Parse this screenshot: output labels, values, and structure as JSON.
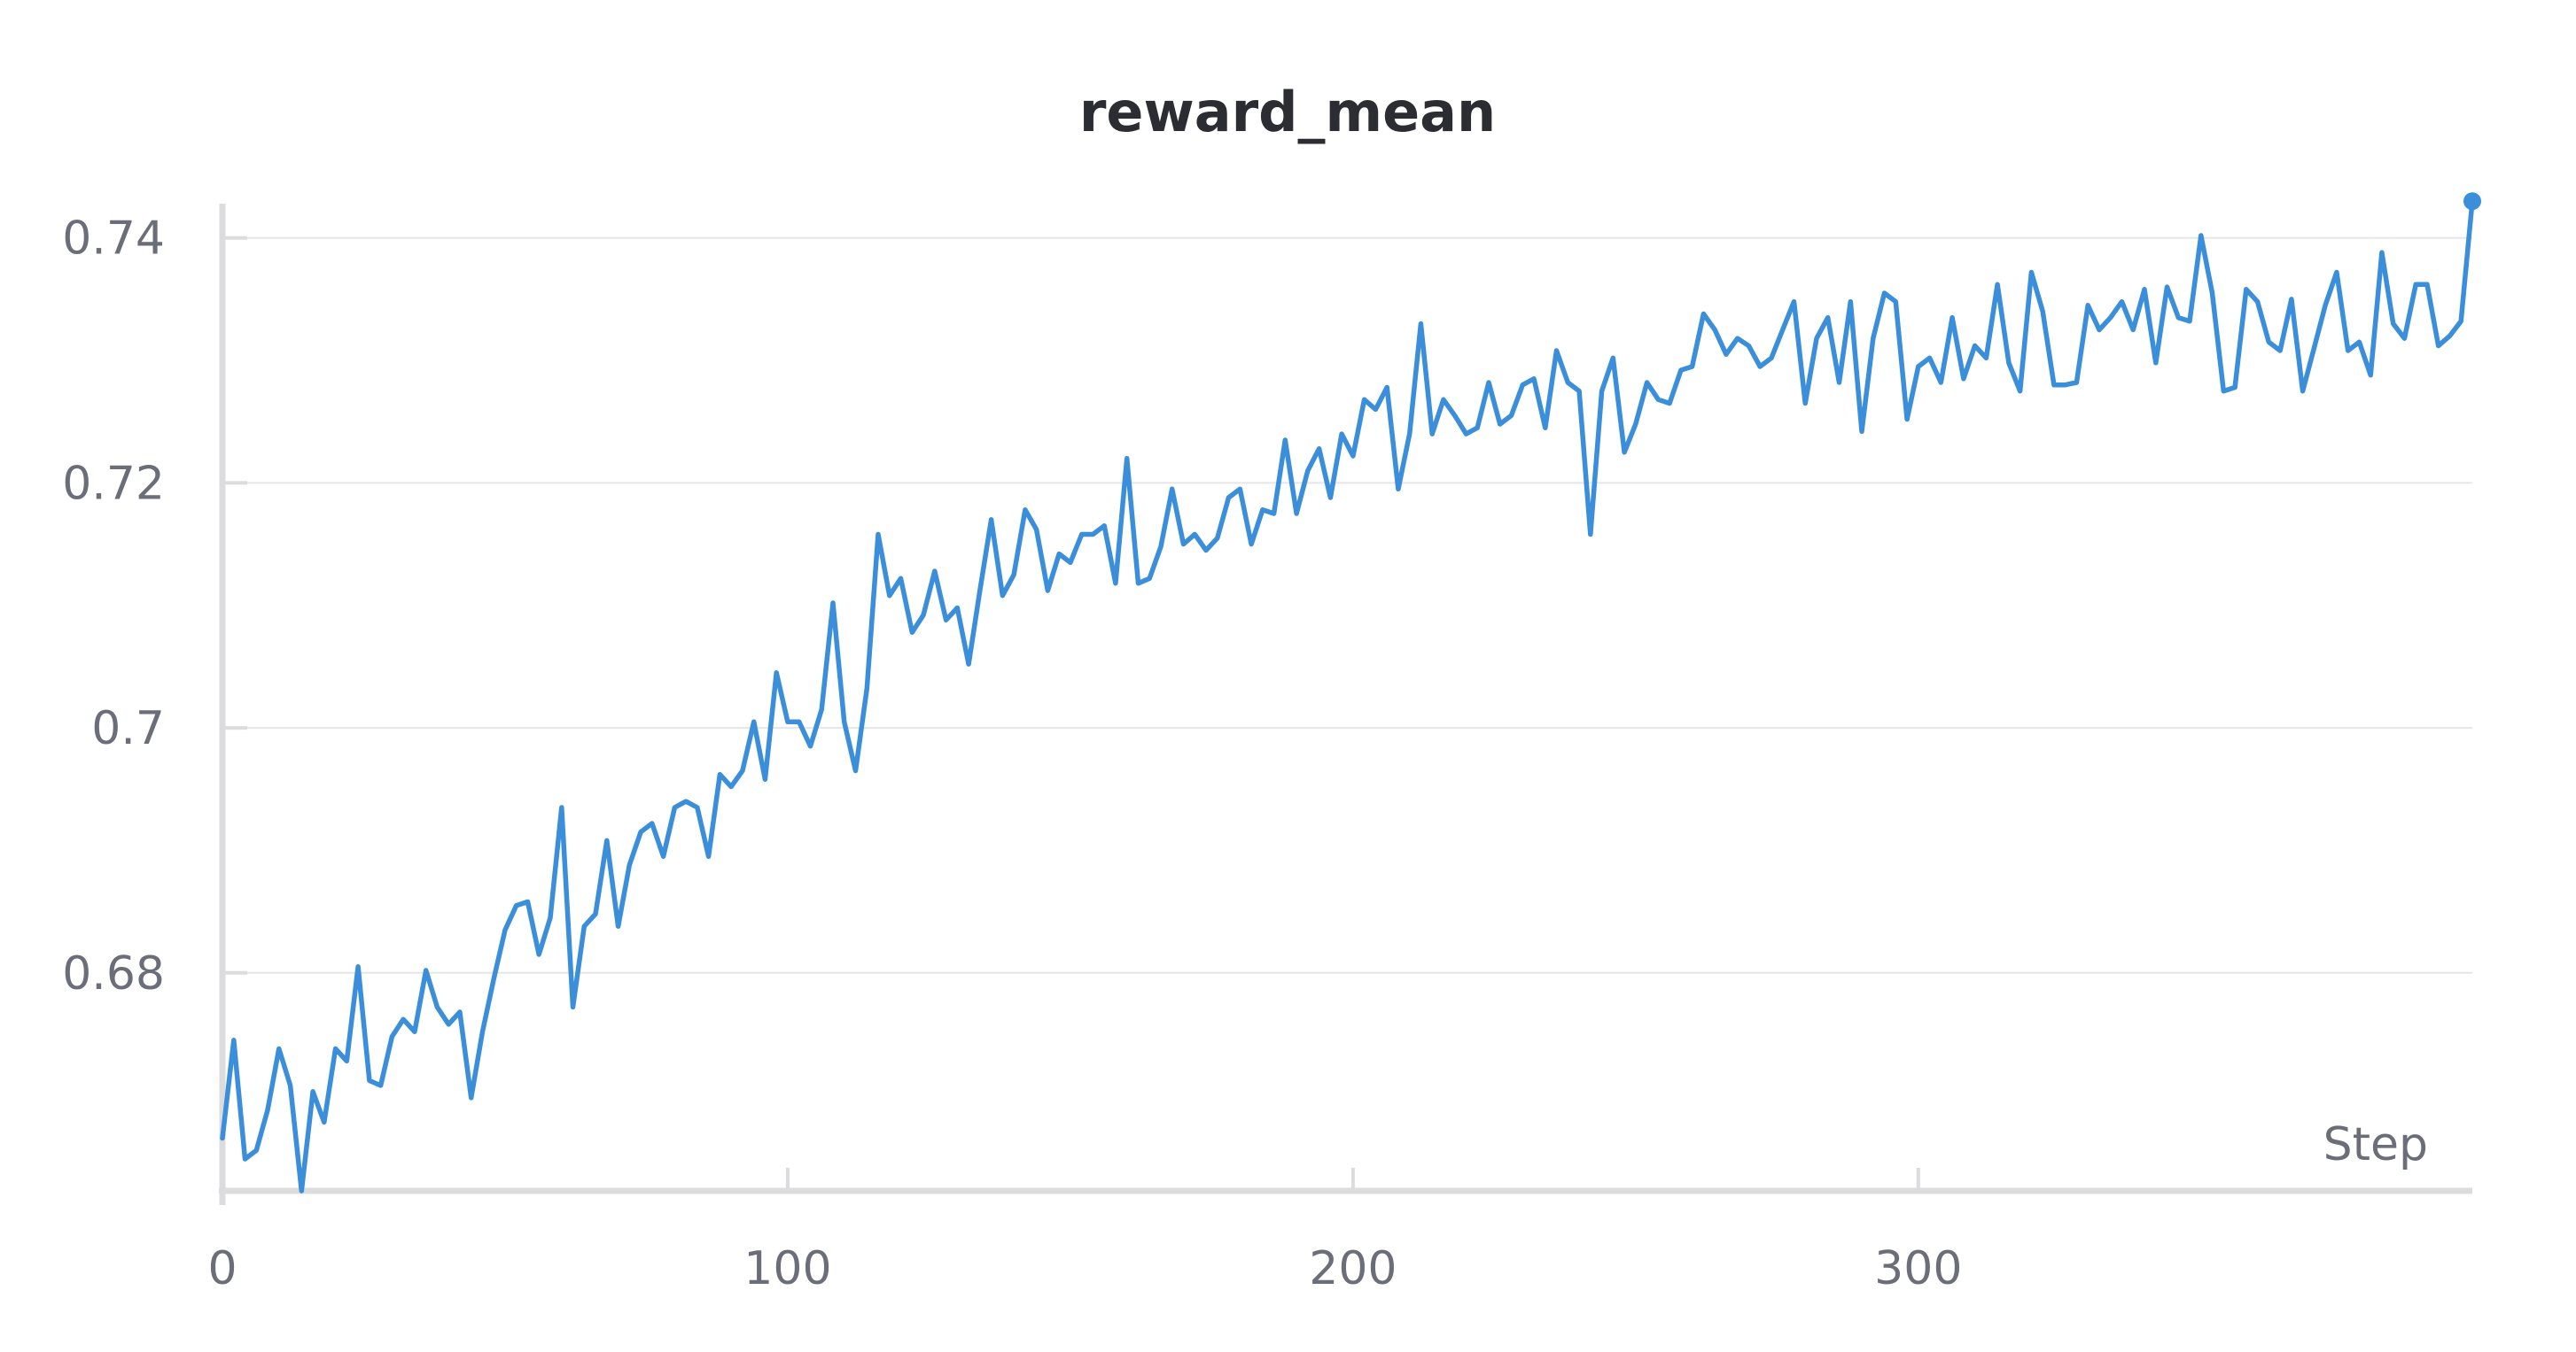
{
  "chart_data": {
    "type": "line",
    "title": "reward_mean",
    "xlabel": "Step",
    "ylabel": "",
    "xlim": [
      0,
      398
    ],
    "ylim": [
      0.6622,
      0.7428
    ],
    "x_ticks": [
      {
        "value": 0,
        "label": "0"
      },
      {
        "value": 100,
        "label": "100"
      },
      {
        "value": 200,
        "label": "200"
      },
      {
        "value": 300,
        "label": "300"
      }
    ],
    "y_ticks": [
      {
        "value": 0.68,
        "label": "0.68"
      },
      {
        "value": 0.7,
        "label": "0.7"
      },
      {
        "value": 0.72,
        "label": "0.72"
      },
      {
        "value": 0.74,
        "label": "0.74"
      }
    ],
    "grid": true,
    "legend": "none",
    "colors": {
      "line": "#3b8ed9",
      "title": "#2b2d33",
      "tick_text": "#6b6e78"
    },
    "series": [
      {
        "x": [
          0,
          2,
          4,
          6,
          8,
          10,
          12,
          14,
          16,
          18,
          20,
          22,
          24,
          26,
          28,
          30,
          32,
          34,
          36,
          38,
          40,
          42,
          44,
          46,
          48,
          50,
          52,
          54,
          56,
          58,
          60,
          62,
          64,
          66,
          68,
          70,
          72,
          74,
          76,
          78,
          80,
          82,
          84,
          86,
          88,
          90,
          92,
          94,
          96,
          98,
          100,
          102,
          104,
          106,
          108,
          110,
          112,
          114,
          116,
          118,
          120,
          122,
          124,
          126,
          128,
          130,
          132,
          134,
          136,
          138,
          140,
          142,
          144,
          146,
          148,
          150,
          152,
          154,
          156,
          158,
          160,
          162,
          164,
          166,
          168,
          170,
          172,
          174,
          176,
          178,
          180,
          182,
          184,
          186,
          188,
          190,
          192,
          194,
          196,
          198,
          200,
          202,
          204,
          206,
          208,
          210,
          212,
          214,
          216,
          218,
          220,
          222,
          224,
          226,
          228,
          230,
          232,
          234,
          236,
          238,
          240,
          242,
          244,
          246,
          248,
          250,
          252,
          254,
          256,
          258,
          260,
          262,
          264,
          266,
          268,
          270,
          272,
          274,
          276,
          278,
          280,
          282,
          284,
          286,
          288,
          290,
          292,
          294,
          296,
          298,
          300,
          302,
          304,
          306,
          308,
          310,
          312,
          314,
          316,
          318,
          320,
          322,
          324,
          326,
          328,
          330,
          332,
          334,
          336,
          338,
          340,
          342,
          344,
          346,
          348,
          350,
          352,
          354,
          356,
          358,
          360,
          362,
          364,
          366,
          368,
          370,
          372,
          374,
          376,
          378,
          380,
          382,
          384,
          386,
          388,
          390,
          392,
          394,
          396,
          398
        ],
        "y": [
          0.6665,
          0.6745,
          0.6648,
          0.6655,
          0.6688,
          0.6738,
          0.6708,
          0.6622,
          0.6703,
          0.6678,
          0.6738,
          0.6728,
          0.6805,
          0.6712,
          0.6708,
          0.6748,
          0.6762,
          0.6752,
          0.6802,
          0.6772,
          0.6758,
          0.6768,
          0.6698,
          0.6752,
          0.6795,
          0.6835,
          0.6855,
          0.6858,
          0.6815,
          0.6845,
          0.6935,
          0.6772,
          0.6838,
          0.6848,
          0.6908,
          0.6838,
          0.6888,
          0.6915,
          0.6922,
          0.6895,
          0.6935,
          0.694,
          0.6935,
          0.6895,
          0.6962,
          0.6952,
          0.6965,
          0.7005,
          0.6958,
          0.7045,
          0.7005,
          0.7005,
          0.6985,
          0.7015,
          0.7102,
          0.7005,
          0.6965,
          0.7032,
          0.7158,
          0.7108,
          0.7122,
          0.7078,
          0.7092,
          0.7128,
          0.7088,
          0.7098,
          0.7052,
          0.7112,
          0.717,
          0.7108,
          0.7125,
          0.7178,
          0.7162,
          0.7112,
          0.7142,
          0.7135,
          0.7158,
          0.7158,
          0.7165,
          0.7118,
          0.722,
          0.7118,
          0.7122,
          0.7148,
          0.7195,
          0.715,
          0.7158,
          0.7145,
          0.7155,
          0.7188,
          0.7195,
          0.715,
          0.7178,
          0.7175,
          0.7235,
          0.7175,
          0.721,
          0.7228,
          0.7188,
          0.724,
          0.7222,
          0.7268,
          0.726,
          0.7278,
          0.7195,
          0.724,
          0.733,
          0.724,
          0.7268,
          0.7255,
          0.724,
          0.7245,
          0.7282,
          0.7248,
          0.7255,
          0.728,
          0.7285,
          0.7245,
          0.7308,
          0.7282,
          0.7275,
          0.7158,
          0.7275,
          0.7302,
          0.7225,
          0.7248,
          0.7282,
          0.7268,
          0.7265,
          0.7292,
          0.7295,
          0.7338,
          0.7325,
          0.7305,
          0.7318,
          0.7312,
          0.7295,
          0.7302,
          0.7325,
          0.7348,
          0.7265,
          0.7318,
          0.7335,
          0.7282,
          0.7348,
          0.7242,
          0.7318,
          0.7355,
          0.7348,
          0.7252,
          0.7295,
          0.7302,
          0.7282,
          0.7335,
          0.7285,
          0.7312,
          0.7302,
          0.7362,
          0.7298,
          0.7275,
          0.7372,
          0.734,
          0.728,
          0.728,
          0.7282,
          0.7345,
          0.7325,
          0.7335,
          0.7348,
          0.7325,
          0.7358,
          0.7298,
          0.736,
          0.7335,
          0.7332,
          0.7402,
          0.7355,
          0.7275,
          0.7278,
          0.7358,
          0.7348,
          0.7315,
          0.7308,
          0.735,
          0.7275,
          0.731,
          0.7345,
          0.7372,
          0.7308,
          0.7315,
          0.7288,
          0.7388,
          0.733,
          0.7318,
          0.7362,
          0.7362,
          0.7312,
          0.732,
          0.7332,
          0.743
        ]
      }
    ]
  }
}
